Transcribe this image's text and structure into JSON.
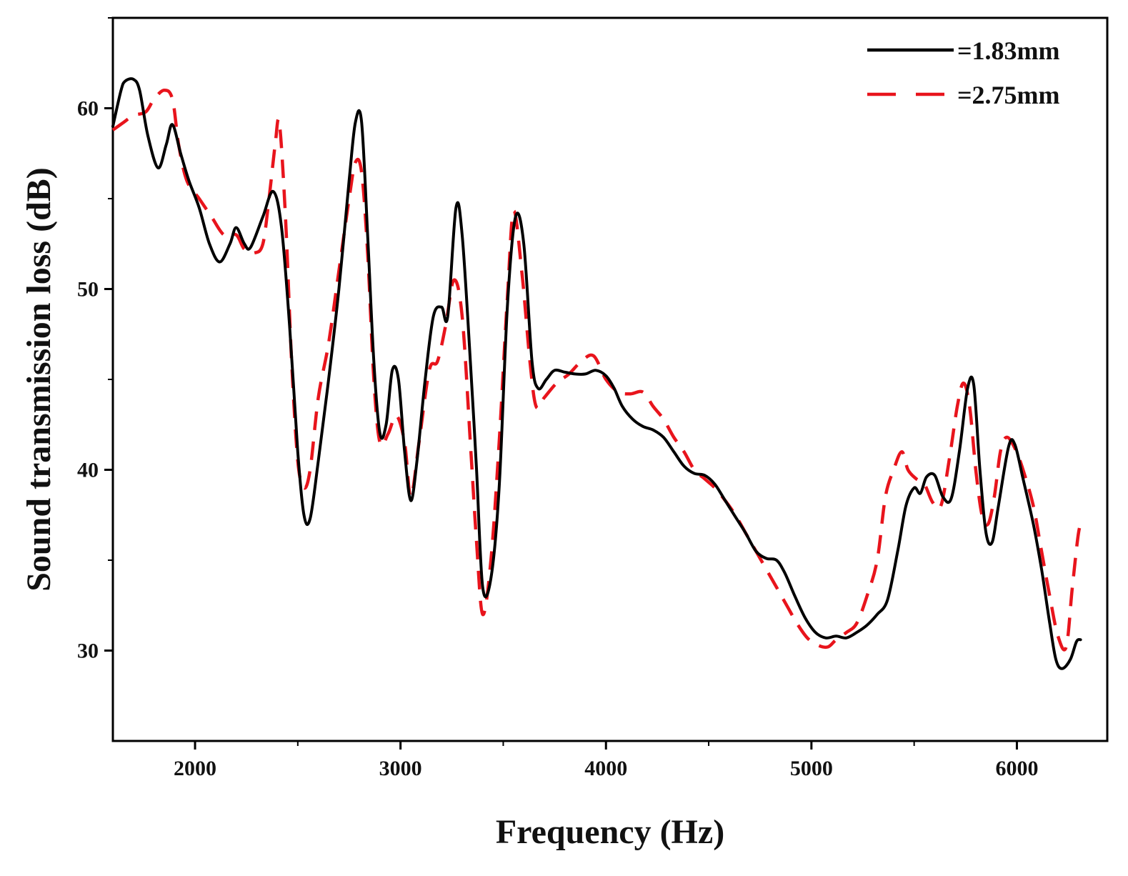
{
  "chart_data": {
    "type": "line",
    "title": "",
    "xlabel": "Frequency (Hz)",
    "ylabel": "Sound transmission loss (dB)",
    "xlim": [
      1600,
      6440
    ],
    "ylim": [
      25,
      65
    ],
    "xticks": [
      2000,
      3000,
      4000,
      5000,
      6000
    ],
    "yticks": [
      30,
      40,
      50,
      60
    ],
    "grid": false,
    "legend_position": "top-right",
    "series": [
      {
        "name": "=1.83mm",
        "color": "#000000",
        "dash": "solid",
        "points": [
          [
            1600,
            59
          ],
          [
            1640,
            61
          ],
          [
            1660,
            61.5
          ],
          [
            1700,
            61.6
          ],
          [
            1730,
            61
          ],
          [
            1770,
            58.5
          ],
          [
            1820,
            56.7
          ],
          [
            1860,
            58
          ],
          [
            1890,
            59.1
          ],
          [
            1930,
            57.5
          ],
          [
            1970,
            56
          ],
          [
            2020,
            54.5
          ],
          [
            2070,
            52.5
          ],
          [
            2120,
            51.5
          ],
          [
            2170,
            52.5
          ],
          [
            2200,
            53.4
          ],
          [
            2240,
            52.5
          ],
          [
            2270,
            52.3
          ],
          [
            2330,
            54
          ],
          [
            2380,
            55.4
          ],
          [
            2420,
            53.5
          ],
          [
            2460,
            48
          ],
          [
            2500,
            41
          ],
          [
            2530,
            37.5
          ],
          [
            2560,
            37.3
          ],
          [
            2600,
            40.5
          ],
          [
            2650,
            45
          ],
          [
            2700,
            50
          ],
          [
            2750,
            56
          ],
          [
            2780,
            59.2
          ],
          [
            2810,
            59.3
          ],
          [
            2840,
            53
          ],
          [
            2870,
            46
          ],
          [
            2900,
            42
          ],
          [
            2930,
            42.5
          ],
          [
            2960,
            45.5
          ],
          [
            2990,
            45
          ],
          [
            3020,
            41
          ],
          [
            3050,
            38.3
          ],
          [
            3080,
            40.5
          ],
          [
            3120,
            45
          ],
          [
            3160,
            48.5
          ],
          [
            3200,
            49
          ],
          [
            3230,
            48.5
          ],
          [
            3270,
            54.5
          ],
          [
            3300,
            53
          ],
          [
            3340,
            46
          ],
          [
            3370,
            40
          ],
          [
            3400,
            33.5
          ],
          [
            3440,
            34
          ],
          [
            3480,
            39
          ],
          [
            3520,
            49
          ],
          [
            3560,
            54
          ],
          [
            3600,
            52.5
          ],
          [
            3640,
            46
          ],
          [
            3670,
            44.5
          ],
          [
            3710,
            45
          ],
          [
            3750,
            45.5
          ],
          [
            3800,
            45.4
          ],
          [
            3850,
            45.3
          ],
          [
            3900,
            45.3
          ],
          [
            3950,
            45.5
          ],
          [
            4000,
            45.2
          ],
          [
            4040,
            44.5
          ],
          [
            4080,
            43.5
          ],
          [
            4130,
            42.8
          ],
          [
            4180,
            42.4
          ],
          [
            4230,
            42.2
          ],
          [
            4280,
            41.8
          ],
          [
            4330,
            41
          ],
          [
            4380,
            40.2
          ],
          [
            4430,
            39.8
          ],
          [
            4480,
            39.7
          ],
          [
            4530,
            39.2
          ],
          [
            4580,
            38.3
          ],
          [
            4630,
            37.4
          ],
          [
            4680,
            36.5
          ],
          [
            4730,
            35.5
          ],
          [
            4780,
            35.1
          ],
          [
            4830,
            35
          ],
          [
            4870,
            34.3
          ],
          [
            4920,
            33
          ],
          [
            4970,
            31.8
          ],
          [
            5020,
            31
          ],
          [
            5070,
            30.7
          ],
          [
            5120,
            30.8
          ],
          [
            5170,
            30.7
          ],
          [
            5220,
            31
          ],
          [
            5270,
            31.4
          ],
          [
            5320,
            32
          ],
          [
            5370,
            32.8
          ],
          [
            5420,
            35.5
          ],
          [
            5460,
            38
          ],
          [
            5500,
            39
          ],
          [
            5530,
            38.7
          ],
          [
            5560,
            39.6
          ],
          [
            5600,
            39.7
          ],
          [
            5640,
            38.5
          ],
          [
            5680,
            38.4
          ],
          [
            5720,
            41
          ],
          [
            5760,
            44.5
          ],
          [
            5790,
            44.7
          ],
          [
            5820,
            40
          ],
          [
            5850,
            36.5
          ],
          [
            5880,
            36
          ],
          [
            5910,
            38
          ],
          [
            5960,
            41.3
          ],
          [
            5990,
            41.4
          ],
          [
            6030,
            39.5
          ],
          [
            6080,
            37
          ],
          [
            6120,
            34.5
          ],
          [
            6160,
            31.5
          ],
          [
            6190,
            29.5
          ],
          [
            6220,
            29
          ],
          [
            6260,
            29.5
          ],
          [
            6290,
            30.5
          ],
          [
            6310,
            30.6
          ]
        ]
      },
      {
        "name": "=2.75mm",
        "color": "#e8141c",
        "dash": "dashed",
        "points": [
          [
            1600,
            58.8
          ],
          [
            1650,
            59.2
          ],
          [
            1700,
            59.6
          ],
          [
            1760,
            59.8
          ],
          [
            1800,
            60.5
          ],
          [
            1850,
            61
          ],
          [
            1890,
            60.5
          ],
          [
            1920,
            58
          ],
          [
            1960,
            56
          ],
          [
            2020,
            55
          ],
          [
            2080,
            54
          ],
          [
            2140,
            53
          ],
          [
            2200,
            53
          ],
          [
            2240,
            52.2
          ],
          [
            2290,
            52
          ],
          [
            2330,
            52.5
          ],
          [
            2360,
            55
          ],
          [
            2390,
            58
          ],
          [
            2410,
            59.2
          ],
          [
            2440,
            54
          ],
          [
            2470,
            46
          ],
          [
            2500,
            40.5
          ],
          [
            2530,
            39
          ],
          [
            2560,
            40
          ],
          [
            2600,
            44
          ],
          [
            2650,
            47
          ],
          [
            2700,
            51
          ],
          [
            2750,
            55
          ],
          [
            2780,
            57
          ],
          [
            2810,
            56.5
          ],
          [
            2840,
            52
          ],
          [
            2870,
            45
          ],
          [
            2900,
            41.5
          ],
          [
            2940,
            42
          ],
          [
            2980,
            43
          ],
          [
            3020,
            41.5
          ],
          [
            3050,
            38.5
          ],
          [
            3090,
            41.5
          ],
          [
            3140,
            45.5
          ],
          [
            3180,
            46
          ],
          [
            3220,
            48
          ],
          [
            3260,
            50.5
          ],
          [
            3300,
            48.5
          ],
          [
            3340,
            41.5
          ],
          [
            3370,
            36
          ],
          [
            3400,
            32
          ],
          [
            3440,
            35
          ],
          [
            3480,
            41.5
          ],
          [
            3520,
            49.5
          ],
          [
            3550,
            54.3
          ],
          [
            3590,
            51
          ],
          [
            3630,
            46
          ],
          [
            3660,
            43.5
          ],
          [
            3700,
            44
          ],
          [
            3760,
            44.8
          ],
          [
            3820,
            45.3
          ],
          [
            3880,
            46
          ],
          [
            3940,
            46.3
          ],
          [
            4000,
            45
          ],
          [
            4060,
            44.3
          ],
          [
            4120,
            44.2
          ],
          [
            4180,
            44.3
          ],
          [
            4230,
            43.5
          ],
          [
            4280,
            42.8
          ],
          [
            4330,
            41.8
          ],
          [
            4380,
            41
          ],
          [
            4430,
            40
          ],
          [
            4480,
            39.5
          ],
          [
            4530,
            39
          ],
          [
            4580,
            38.3
          ],
          [
            4630,
            37.5
          ],
          [
            4680,
            36.5
          ],
          [
            4730,
            35.5
          ],
          [
            4780,
            34.5
          ],
          [
            4830,
            33.5
          ],
          [
            4880,
            32.5
          ],
          [
            4930,
            31.5
          ],
          [
            4980,
            30.7
          ],
          [
            5030,
            30.3
          ],
          [
            5080,
            30.2
          ],
          [
            5120,
            30.6
          ],
          [
            5170,
            31
          ],
          [
            5220,
            31.5
          ],
          [
            5270,
            33
          ],
          [
            5320,
            35
          ],
          [
            5360,
            38.5
          ],
          [
            5400,
            40
          ],
          [
            5440,
            41
          ],
          [
            5470,
            40
          ],
          [
            5510,
            39.5
          ],
          [
            5550,
            39.2
          ],
          [
            5590,
            38.2
          ],
          [
            5630,
            38
          ],
          [
            5670,
            40.5
          ],
          [
            5710,
            43.5
          ],
          [
            5740,
            44.8
          ],
          [
            5770,
            43.5
          ],
          [
            5800,
            40
          ],
          [
            5830,
            37.5
          ],
          [
            5860,
            37
          ],
          [
            5890,
            38.5
          ],
          [
            5920,
            41
          ],
          [
            5950,
            41.8
          ],
          [
            5990,
            41.2
          ],
          [
            6030,
            40
          ],
          [
            6080,
            38
          ],
          [
            6120,
            35.5
          ],
          [
            6160,
            33
          ],
          [
            6200,
            30.8
          ],
          [
            6240,
            30.2
          ],
          [
            6270,
            33.5
          ],
          [
            6300,
            36.5
          ],
          [
            6320,
            37.2
          ]
        ]
      }
    ]
  }
}
